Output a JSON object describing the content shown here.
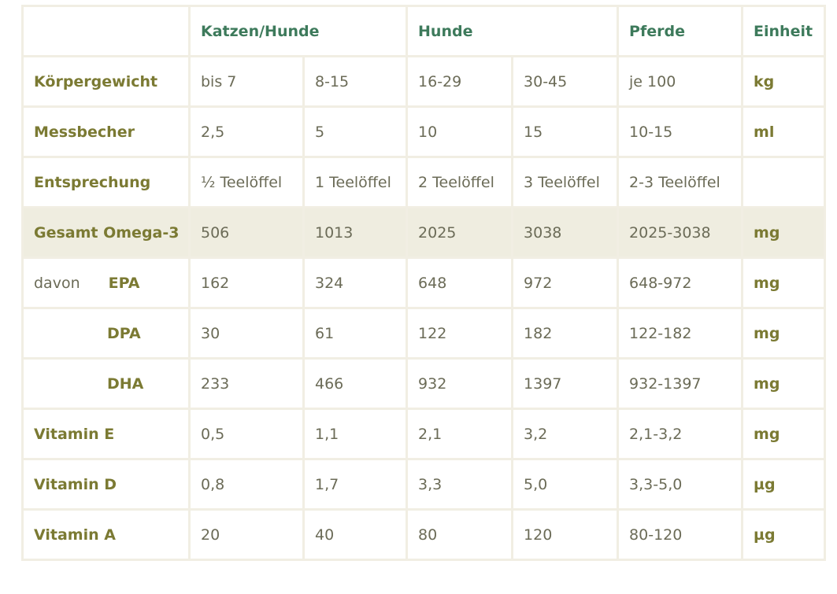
{
  "header": {
    "katzen_hunde": "Katzen/Hunde",
    "hunde": "Hunde",
    "pferde": "Pferde",
    "einheit": "Einheit"
  },
  "rows": [
    {
      "label": "Körpergewicht",
      "values": [
        "bis 7",
        "8-15",
        "16-29",
        "30-45",
        "je 100"
      ],
      "unit": "kg"
    },
    {
      "label": "Messbecher",
      "values": [
        "2,5",
        "5",
        "10",
        "15",
        "10-15"
      ],
      "unit": "ml"
    },
    {
      "label": "Entsprechung",
      "values": [
        "½ Teelöffel",
        "1 Teelöffel",
        "2 Teelöffel",
        "3 Teelöffel",
        "2-3 Teelöffel"
      ],
      "unit": ""
    },
    {
      "label": "Gesamt Omega-3",
      "values": [
        "506",
        "1013",
        "2025",
        "3038",
        "2025-3038"
      ],
      "unit": "mg"
    },
    {
      "label": "davon",
      "sublabel": "EPA",
      "values": [
        "162",
        "324",
        "648",
        "972",
        "648-972"
      ],
      "unit": "mg"
    },
    {
      "label": "",
      "sublabel": "DPA",
      "values": [
        "30",
        "61",
        "122",
        "182",
        "122-182"
      ],
      "unit": "mg"
    },
    {
      "label": "",
      "sublabel": "DHA",
      "values": [
        "233",
        "466",
        "932",
        "1397",
        "932-1397"
      ],
      "unit": "mg"
    },
    {
      "label": "Vitamin E",
      "values": [
        "0,5",
        "1,1",
        "2,1",
        "3,2",
        "2,1-3,2"
      ],
      "unit": "mg"
    },
    {
      "label": "Vitamin D",
      "values": [
        "0,8",
        "1,7",
        "3,3",
        "5,0",
        "3,3-5,0"
      ],
      "unit": "µg"
    },
    {
      "label": "Vitamin A",
      "values": [
        "20",
        "40",
        "80",
        "120",
        "80-120"
      ],
      "unit": "µg"
    }
  ]
}
